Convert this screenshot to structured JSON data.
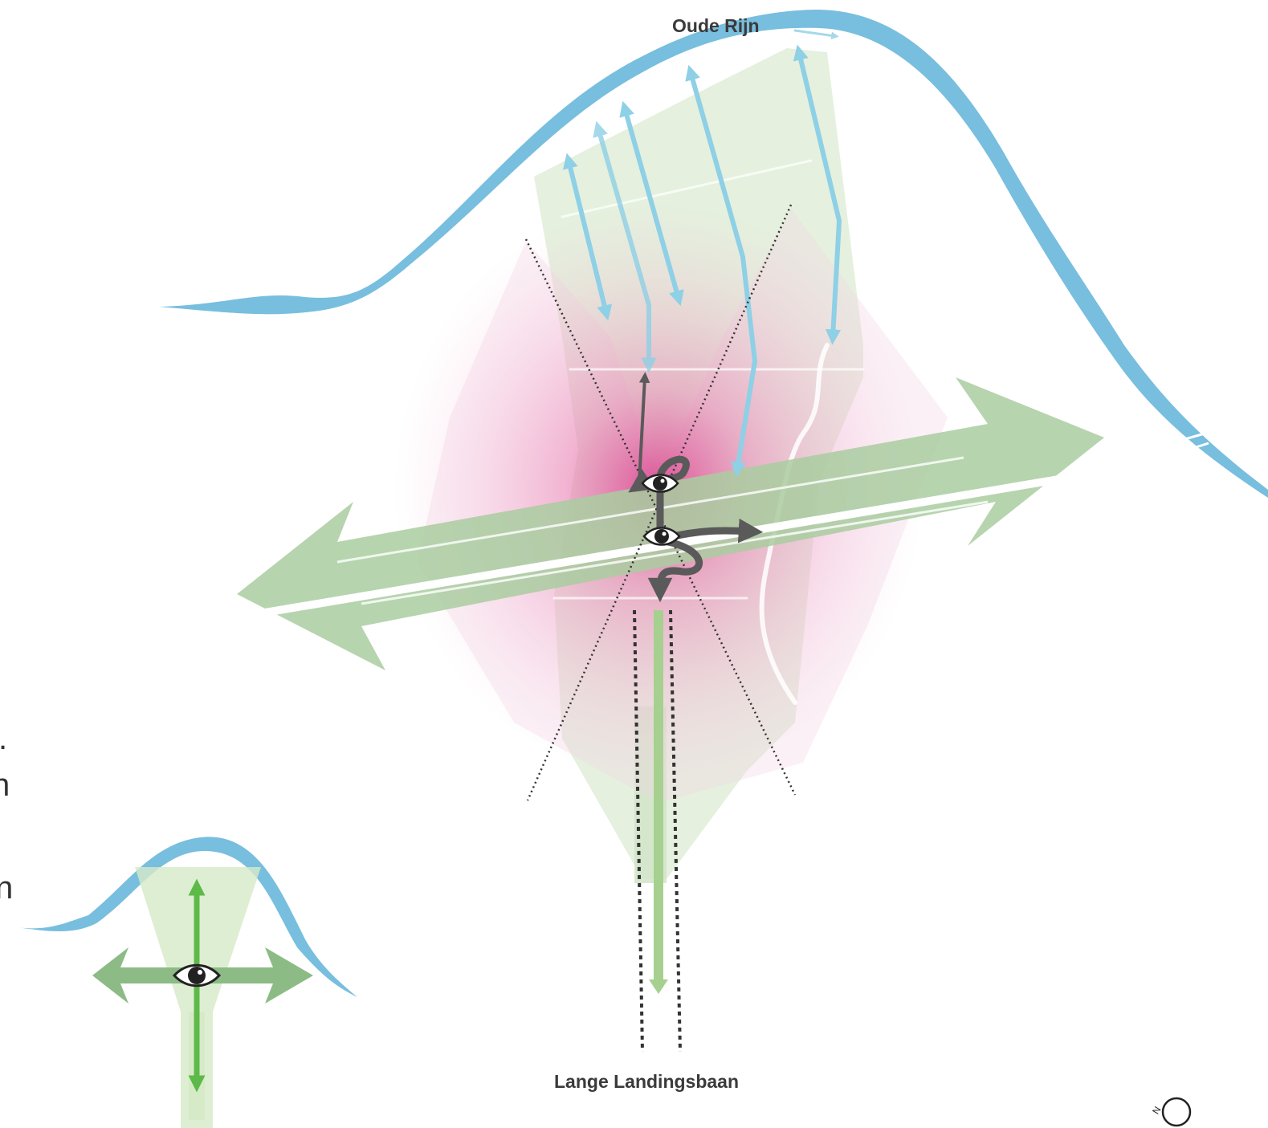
{
  "labels": {
    "river": "Oude Rijn",
    "runway": "Lange Landingsbaan"
  },
  "edge_text": [
    ".",
    "n",
    "n"
  ],
  "compass": {
    "letter": "N"
  },
  "colors": {
    "river": "#78bede",
    "water_arrow": "#8ed0e6",
    "green_axis": "#a9cca0",
    "green_area": "#dcebd3",
    "pink_glow": "#d9368a",
    "dark_arrow": "#5a5a5a",
    "legend_green": "#5dba48",
    "legend_axis": "#8cbb86"
  },
  "icons": [
    "eye-icon",
    "arrow-icon",
    "compass-icon"
  ]
}
